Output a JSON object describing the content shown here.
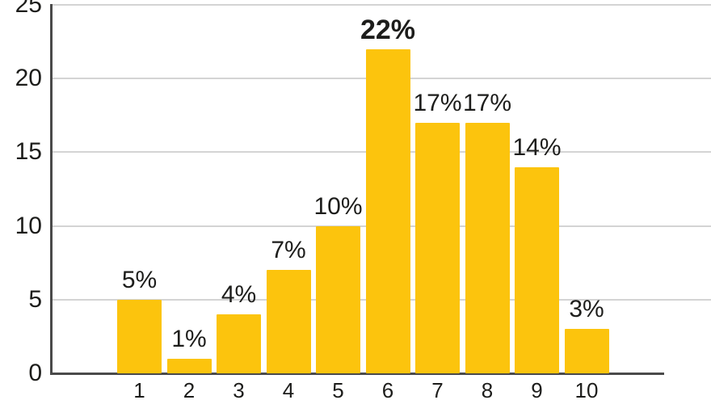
{
  "chart_data": {
    "type": "bar",
    "title": "",
    "xlabel": "",
    "ylabel": "",
    "categories": [
      "1",
      "2",
      "3",
      "4",
      "5",
      "6",
      "7",
      "8",
      "9",
      "10"
    ],
    "values": [
      5,
      1,
      4,
      7,
      10,
      22,
      17,
      17,
      14,
      3
    ],
    "value_labels": [
      "5%",
      "1%",
      "4%",
      "7%",
      "10%",
      "22%",
      "17%",
      "17%",
      "14%",
      "3%"
    ],
    "emphasized_index": 5,
    "ylim": [
      0,
      25
    ],
    "yticks": [
      0,
      5,
      10,
      15,
      20,
      25
    ],
    "grid": true,
    "legend": "none",
    "bar_color": "#fcc40d",
    "axis_color": "#4a4a4a",
    "grid_color": "#d4d4d4",
    "label_color": "#1d1d1b"
  }
}
